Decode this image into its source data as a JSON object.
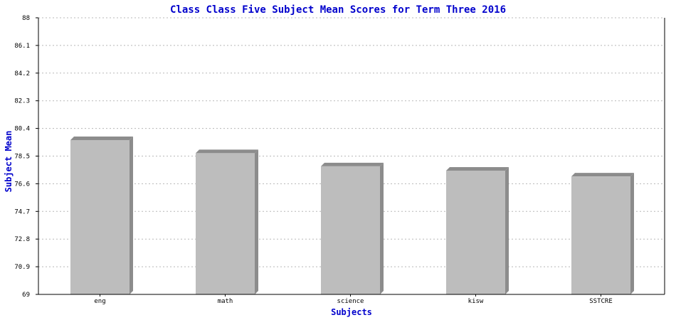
{
  "chart_data": {
    "type": "bar",
    "title": "Class Class Five Subject Mean Scores for Term Three 2016",
    "xlabel": "Subjects",
    "ylabel": "Subject Mean",
    "categories": [
      "eng",
      "math",
      "science",
      "kisw",
      "SSTCRE"
    ],
    "values": [
      79.6,
      78.7,
      77.8,
      77.5,
      77.1
    ],
    "ylim": [
      69,
      88
    ],
    "yticks": [
      "69",
      "70.9",
      "72.8",
      "74.7",
      "76.6",
      "78.5",
      "80.4",
      "82.3",
      "84.2",
      "86.1",
      "88"
    ],
    "grid": true,
    "colors": {
      "bar_face": "#bdbdbd",
      "bar_side": "#8c8c8c",
      "text_accent": "#0000cc"
    }
  }
}
